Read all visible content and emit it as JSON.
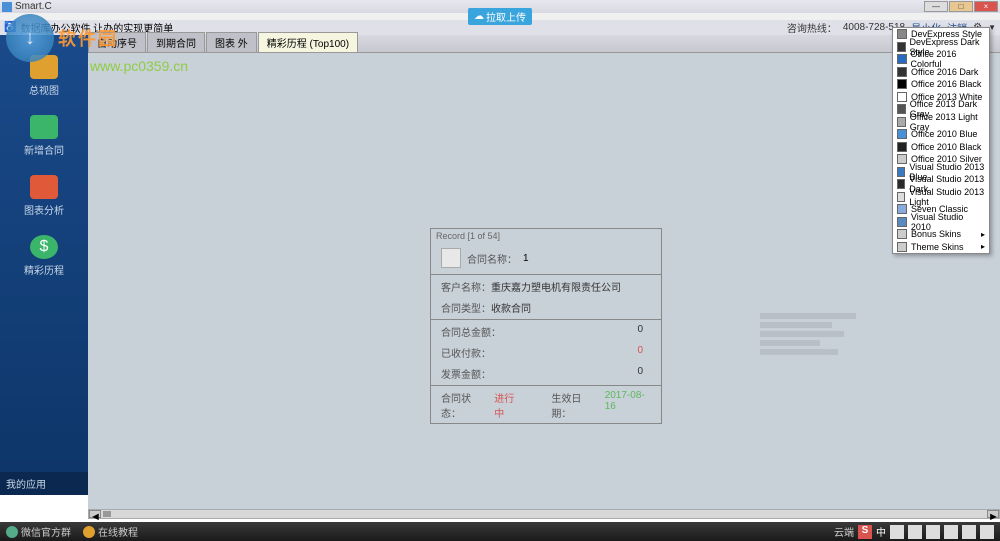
{
  "window": {
    "title": "Smart.C",
    "cloud_button": "拉取上传"
  },
  "menubar": {
    "left_text": "数据库办公软件     让办的实现更简单",
    "hotline_label": "咨询热线：",
    "hotline": "4008-728-518",
    "minimize": "最小化",
    "logout": "注销"
  },
  "tabs": [
    {
      "label": "自动序号"
    },
    {
      "label": "到期合同"
    },
    {
      "label": "图表 外"
    },
    {
      "label": "精彩历程 (Top100)"
    }
  ],
  "sidebar": {
    "items": [
      {
        "label": "总视图",
        "color": "#e0a030"
      },
      {
        "label": "新增合同",
        "color": "#3ab56a"
      },
      {
        "label": "图表分析",
        "color": "#e05a3a"
      },
      {
        "label": "精彩历程",
        "color": "#3ab56a"
      }
    ],
    "footer": "我的应用"
  },
  "record": {
    "title": "Record [1 of 54]",
    "name_label": "合同名称：",
    "name_value": "1",
    "customer_label": "客户名称：",
    "customer_value": "重庆嘉力塑电机有限责任公司",
    "type_label": "合同类型：",
    "type_value": "收款合同",
    "total_label": "合同总金额：",
    "total_value": "0",
    "received_label": "已收付款：",
    "received_value": "0",
    "received_color": "#d9534f",
    "invoice_label": "发票金额：",
    "invoice_value": "0",
    "status_label": "合同状态：",
    "status_value": "进行中",
    "date_label": "生效日期：",
    "date_value": "2017-08-16"
  },
  "skin_menu": [
    {
      "label": "DevExpress Style",
      "color": "#888"
    },
    {
      "label": "DevExpress Dark Style",
      "color": "#333"
    },
    {
      "label": "Office 2016 Colorful",
      "color": "#2a6ac0"
    },
    {
      "label": "Office 2016 Dark",
      "color": "#333"
    },
    {
      "label": "Office 2016 Black",
      "color": "#000"
    },
    {
      "label": "Office 2013 White",
      "color": "#fff"
    },
    {
      "label": "Office 2013 Dark Gray",
      "color": "#555"
    },
    {
      "label": "Office 2013 Light Gray",
      "color": "#aaa"
    },
    {
      "label": "Office 2010 Blue",
      "color": "#4a90d9"
    },
    {
      "label": "Office 2010 Black",
      "color": "#222"
    },
    {
      "label": "Office 2010 Silver",
      "color": "#ccc"
    },
    {
      "label": "Visual Studio 2013 Blue",
      "color": "#3a7ac0"
    },
    {
      "label": "Visual Studio 2013 Dark",
      "color": "#2a2a2a"
    },
    {
      "label": "Visual Studio 2013 Light",
      "color": "#ddd"
    },
    {
      "label": "Seven Classic",
      "color": "#88aadd"
    },
    {
      "label": "Visual Studio 2010",
      "color": "#5a8ac0"
    },
    {
      "label": "Bonus Skins",
      "submenu": true
    },
    {
      "label": "Theme Skins",
      "submenu": true
    }
  ],
  "watermark": {
    "text": "软件园",
    "url": "www.pc0359.cn"
  },
  "taskbar": {
    "items": [
      {
        "label": "微信官方群"
      },
      {
        "label": "在线教程"
      }
    ],
    "right_label": "云端"
  }
}
